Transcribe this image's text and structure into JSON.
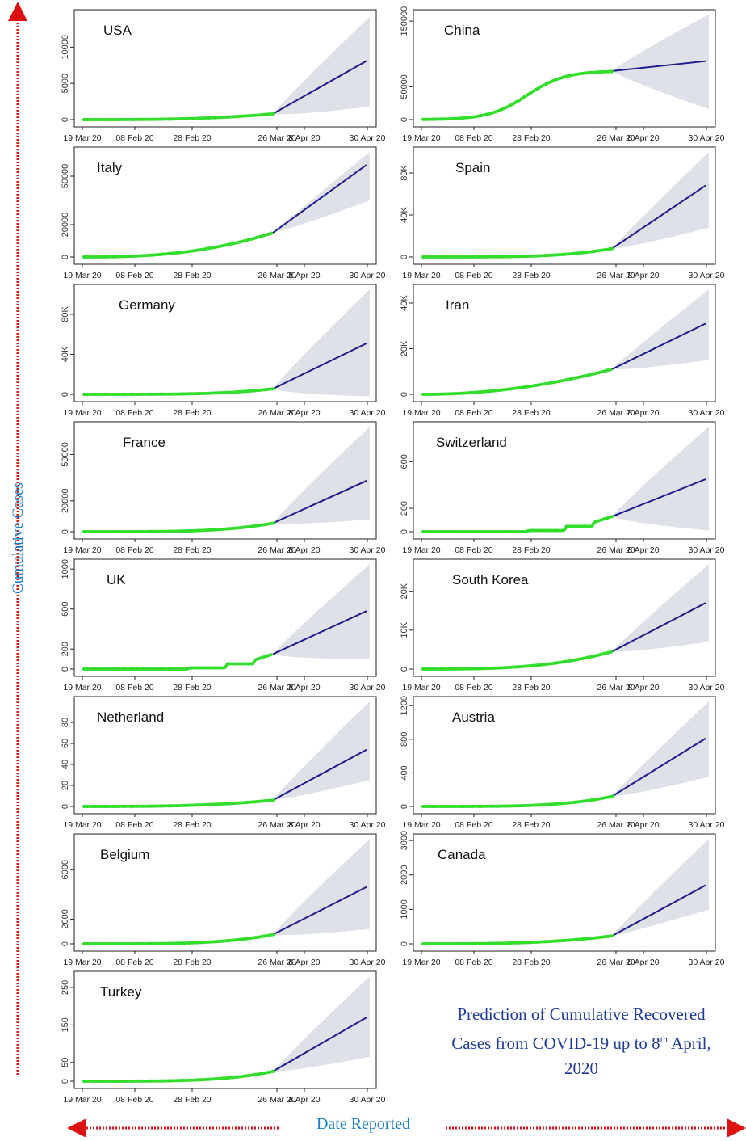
{
  "figure": {
    "y_axis_label": "Cumulative Cases",
    "x_axis_label": "Date Reported",
    "caption_line1": "Prediction of Cumulative Recovered",
    "caption_line2_prefix": "Cases from COVID-19 up to 8",
    "caption_line2_sup": "th",
    "caption_line2_suffix": " April,",
    "caption_line3": "2020",
    "colors": {
      "observed": "#33dd2b",
      "forecast": "#1c1c8c",
      "interval": "#dfe1e8",
      "axis_label": "#1a7fc4",
      "caption": "#1f3b99",
      "arrows": "#dd1111"
    }
  },
  "chart_data": [
    {
      "type": "line",
      "title": "USA",
      "x_tick_labels": [
        "19 Mar 20",
        "08 Feb 20",
        "28 Feb 20",
        "26 Mar 20",
        "8 Apr 20",
        "30 Apr 20"
      ],
      "y_ticks": [
        "0",
        "5000",
        "10000"
      ],
      "ylim": [
        0,
        14500
      ],
      "observed_end": 800,
      "observed_shape": 3,
      "forecast_end": 8100,
      "lower_end": 1800,
      "upper_end": 14200
    },
    {
      "type": "line",
      "title": "China",
      "x_tick_labels": [
        "19 Mar 20",
        "08 Feb 20",
        "28 Feb 20",
        "26 Mar 20",
        "8 Apr 20",
        "30 Apr 20"
      ],
      "y_ticks": [
        "0",
        "50000",
        "150000"
      ],
      "ylim": [
        0,
        160000
      ],
      "observed_end": 74000,
      "observed_shape": "s",
      "forecast_end": 89000,
      "lower_end": 16000,
      "upper_end": 160000
    },
    {
      "type": "line",
      "title": "Italy",
      "x_tick_labels": [
        "19 Mar 20",
        "08 Feb 20",
        "28 Feb 20",
        "26 Mar 20",
        "8 Apr 20",
        "30 Apr 20"
      ],
      "y_ticks": [
        "0",
        "20000",
        "50000"
      ],
      "ylim": [
        0,
        65000
      ],
      "observed_end": 15000,
      "observed_shape": 2.5,
      "forecast_end": 57000,
      "lower_end": 35000,
      "upper_end": 65000
    },
    {
      "type": "line",
      "title": "Spain",
      "x_tick_labels": [
        "19 Mar 20",
        "08 Feb 20",
        "28 Feb 20",
        "26 Mar 20",
        "8 Apr 20",
        "30 Apr 20"
      ],
      "y_ticks": [
        "0",
        "40K",
        "80K"
      ],
      "ylim": [
        0,
        100000
      ],
      "observed_end": 8000,
      "observed_shape": 4,
      "forecast_end": 68000,
      "lower_end": 28000,
      "upper_end": 100000
    },
    {
      "type": "line",
      "title": "Germany",
      "x_tick_labels": [
        "19 Mar 20",
        "08 Feb 20",
        "28 Feb 20",
        "26 Mar 20",
        "8 Apr 20",
        "30 Apr 20"
      ],
      "y_ticks": [
        "0",
        "40K",
        "80K"
      ],
      "ylim": [
        0,
        105000
      ],
      "observed_end": 5500,
      "observed_shape": 4,
      "forecast_end": 51000,
      "lower_end": -2000,
      "upper_end": 105000
    },
    {
      "type": "line",
      "title": "Iran",
      "x_tick_labels": [
        "19 Mar 20",
        "08 Feb 20",
        "28 Feb 20",
        "26 Mar 20",
        "8 Apr 20",
        "30 Apr 20"
      ],
      "y_ticks": [
        "0",
        "20K",
        "40K"
      ],
      "ylim": [
        0,
        46000
      ],
      "observed_end": 11000,
      "observed_shape": 2,
      "forecast_end": 31000,
      "lower_end": 15000,
      "upper_end": 46000
    },
    {
      "type": "line",
      "title": "France",
      "x_tick_labels": [
        "19 Mar 20",
        "08 Feb 20",
        "28 Feb 20",
        "26 Mar 20",
        "8 Apr 20",
        "30 Apr 20"
      ],
      "y_ticks": [
        "0",
        "20000",
        "50000"
      ],
      "ylim": [
        0,
        68000
      ],
      "observed_end": 5500,
      "observed_shape": 4,
      "forecast_end": 33000,
      "lower_end": 8000,
      "upper_end": 68000
    },
    {
      "type": "line",
      "title": "Switzerland",
      "x_tick_labels": [
        "19 Mar 20",
        "08 Feb 20",
        "28 Feb 20",
        "26 Mar 20",
        "8 Apr 20",
        "30 Apr 20"
      ],
      "y_ticks": [
        "0",
        "200",
        "600"
      ],
      "ylim": [
        0,
        900
      ],
      "observed_end": 130,
      "observed_shape": "j",
      "forecast_end": 450,
      "lower_end": 10,
      "upper_end": 900
    },
    {
      "type": "line",
      "title": "UK",
      "x_tick_labels": [
        "19 Mar 20",
        "08 Feb 20",
        "28 Feb 20",
        "26 Mar 20",
        "8 Apr 20",
        "30 Apr 20"
      ],
      "y_ticks": [
        "0",
        "200",
        "600",
        "1000"
      ],
      "ylim": [
        0,
        1050
      ],
      "observed_end": 150,
      "observed_shape": "j",
      "forecast_end": 580,
      "lower_end": 100,
      "upper_end": 1050
    },
    {
      "type": "line",
      "title": "South Korea",
      "x_tick_labels": [
        "19 Mar 20",
        "08 Feb 20",
        "28 Feb 20",
        "26 Mar 20",
        "8 Apr 20",
        "30 Apr 20"
      ],
      "y_ticks": [
        "0",
        "10K",
        "20K"
      ],
      "ylim": [
        0,
        27000
      ],
      "observed_end": 4500,
      "observed_shape": 3,
      "forecast_end": 17000,
      "lower_end": 7000,
      "upper_end": 27000
    },
    {
      "type": "line",
      "title": "Netherland",
      "x_tick_labels": [
        "19 Mar 20",
        "08 Feb 20",
        "28 Feb 20",
        "26 Mar 20",
        "8 Apr 20",
        "30 Apr 20"
      ],
      "y_ticks": [
        "0",
        "20",
        "40",
        "60",
        "80"
      ],
      "ylim": [
        0,
        100
      ],
      "observed_end": 6,
      "observed_shape": 3,
      "forecast_end": 54,
      "lower_end": 25,
      "upper_end": 100
    },
    {
      "type": "line",
      "title": "Austria",
      "x_tick_labels": [
        "19 Mar 20",
        "08 Feb 20",
        "28 Feb 20",
        "26 Mar 20",
        "8 Apr 20",
        "30 Apr 20"
      ],
      "y_ticks": [
        "0",
        "400",
        "800",
        "1200"
      ],
      "ylim": [
        0,
        1250
      ],
      "observed_end": 120,
      "observed_shape": 4,
      "forecast_end": 810,
      "lower_end": 350,
      "upper_end": 1250
    },
    {
      "type": "line",
      "title": "Belgium",
      "x_tick_labels": [
        "19 Mar 20",
        "08 Feb 20",
        "28 Feb 20",
        "26 Mar 20",
        "8 Apr 20",
        "30 Apr 20"
      ],
      "y_ticks": [
        "0",
        "2000",
        "6000"
      ],
      "ylim": [
        0,
        8500
      ],
      "observed_end": 750,
      "observed_shape": 4,
      "forecast_end": 4600,
      "lower_end": 1200,
      "upper_end": 8500
    },
    {
      "type": "line",
      "title": "Canada",
      "x_tick_labels": [
        "19 Mar 20",
        "08 Feb 20",
        "28 Feb 20",
        "26 Mar 20",
        "8 Apr 20",
        "30 Apr 20"
      ],
      "y_ticks": [
        "0",
        "1000",
        "2000",
        "3000"
      ],
      "ylim": [
        0,
        3050
      ],
      "observed_end": 230,
      "observed_shape": 3,
      "forecast_end": 1700,
      "lower_end": 1000,
      "upper_end": 3050
    },
    {
      "type": "line",
      "title": "Turkey",
      "x_tick_labels": [
        "19 Mar 20",
        "08 Feb 20",
        "28 Feb 20",
        "26 Mar 20",
        "8 Apr 20",
        "30 Apr 20"
      ],
      "y_ticks": [
        "0",
        "50",
        "150",
        "250"
      ],
      "ylim": [
        0,
        280
      ],
      "observed_end": 26,
      "observed_shape": 4,
      "forecast_end": 170,
      "lower_end": 65,
      "upper_end": 280
    }
  ]
}
